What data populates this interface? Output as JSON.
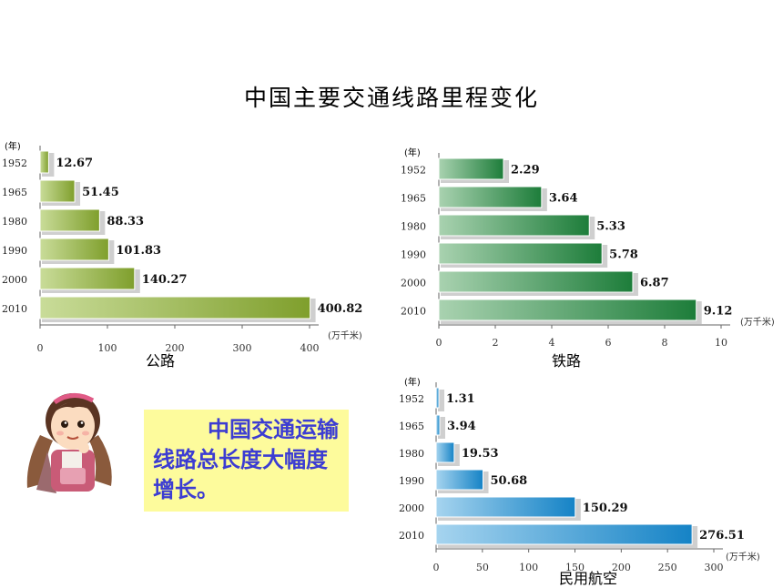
{
  "title": "中国主要交通线路里程变化",
  "note": "中国交通运输线路总长度大幅度增长。",
  "chart_data": [
    {
      "type": "bar",
      "orientation": "horizontal",
      "caption": "公路",
      "year_label": "(年)",
      "unit_label": "(万千米)",
      "categories": [
        "1952",
        "1965",
        "1980",
        "1990",
        "2000",
        "2010"
      ],
      "values": [
        12.67,
        51.45,
        88.33,
        101.83,
        140.27,
        400.82
      ],
      "value_labels": [
        "12.67",
        "51.45",
        "88.33",
        "101.83",
        "140.27",
        "400.82"
      ],
      "xticks": [
        "0",
        "100",
        "200",
        "300",
        "400"
      ],
      "xlim": [
        0,
        400
      ],
      "colors": [
        "#c9dc99",
        "#7f9f2c"
      ]
    },
    {
      "type": "bar",
      "orientation": "horizontal",
      "caption": "铁路",
      "year_label": "(年)",
      "unit_label": "(万千米)",
      "categories": [
        "1952",
        "1965",
        "1980",
        "1990",
        "2000",
        "2010"
      ],
      "values": [
        2.29,
        3.64,
        5.33,
        5.78,
        6.87,
        9.12
      ],
      "value_labels": [
        "2.29",
        "3.64",
        "5.33",
        "5.78",
        "6.87",
        "9.12"
      ],
      "xticks": [
        "0",
        "2",
        "4",
        "6",
        "8",
        "10"
      ],
      "xlim": [
        0,
        10
      ],
      "colors": [
        "#a9d2b0",
        "#1d7d3a"
      ]
    },
    {
      "type": "bar",
      "orientation": "horizontal",
      "caption": "民用航空",
      "year_label": "(年)",
      "unit_label": "(万千米)",
      "categories": [
        "1952",
        "1965",
        "1980",
        "1990",
        "2000",
        "2010"
      ],
      "values": [
        1.31,
        3.94,
        19.53,
        50.68,
        150.29,
        276.51
      ],
      "value_labels": [
        "1.31",
        "3.94",
        "19.53",
        "50.68",
        "150.29",
        "276.51"
      ],
      "xticks": [
        "0",
        "50",
        "100",
        "150",
        "200",
        "250",
        "300"
      ],
      "xlim": [
        0,
        300
      ],
      "colors": [
        "#a6d4ef",
        "#1583c6"
      ]
    }
  ]
}
